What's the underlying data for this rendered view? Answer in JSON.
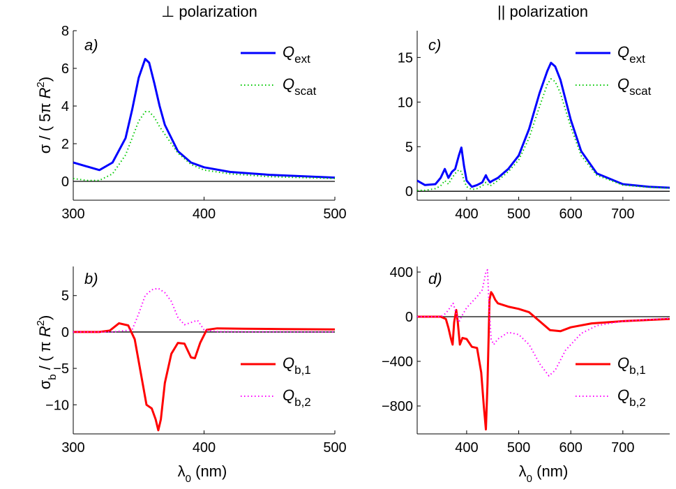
{
  "figure": {
    "column_titles": [
      "⊥ polarization",
      "|| polarization"
    ],
    "ylabel_top": "σ / ( 5π R²)",
    "ylabel_bottom": "σ_b / ( π R²)",
    "xlabel": "λ₀ (nm)"
  },
  "colors": {
    "blue": "#0000ff",
    "green": "#00c800",
    "red": "#ff0000",
    "magenta": "#ff00ff",
    "axis": "#000000"
  },
  "chart_data": [
    {
      "type": "line",
      "panel_label": "a)",
      "xlim": [
        300,
        500
      ],
      "ylim": [
        -1,
        8
      ],
      "xticks": [
        300,
        400,
        500
      ],
      "yticks": [
        0,
        2,
        4,
        6,
        8
      ],
      "zero_line": true,
      "legend": "top-right",
      "series": [
        {
          "name": "Q_ext",
          "name_main": "Q",
          "name_sub": "ext",
          "style": "solid",
          "color": "#0000ff",
          "x": [
            300,
            310,
            320,
            330,
            340,
            345,
            350,
            355,
            358,
            362,
            366,
            370,
            380,
            390,
            400,
            420,
            450,
            500
          ],
          "y": [
            1.0,
            0.8,
            0.6,
            1.0,
            2.3,
            3.8,
            5.5,
            6.5,
            6.3,
            5.2,
            4.0,
            3.0,
            1.6,
            1.0,
            0.75,
            0.5,
            0.35,
            0.2
          ]
        },
        {
          "name": "Q_scat",
          "name_main": "Q",
          "name_sub": "scat",
          "style": "dotted",
          "color": "#00c800",
          "x": [
            300,
            310,
            320,
            330,
            340,
            345,
            350,
            355,
            358,
            362,
            366,
            370,
            380,
            390,
            400,
            420,
            450,
            500
          ],
          "y": [
            0.15,
            0.05,
            0.05,
            0.4,
            1.4,
            2.3,
            3.2,
            3.7,
            3.7,
            3.4,
            2.9,
            2.5,
            1.5,
            0.9,
            0.6,
            0.4,
            0.25,
            0.15
          ]
        }
      ]
    },
    {
      "type": "line",
      "panel_label": "b)",
      "xlim": [
        300,
        500
      ],
      "ylim": [
        -14,
        9
      ],
      "xticks": [
        300,
        400,
        500
      ],
      "yticks": [
        -10,
        -5,
        0,
        5
      ],
      "zero_line": true,
      "legend": "bottom-right",
      "series": [
        {
          "name": "Q_b,1",
          "name_main": "Q",
          "name_sub": "b,1",
          "style": "solid",
          "color": "#ff0000",
          "x": [
            300,
            320,
            328,
            335,
            342,
            347,
            352,
            356,
            360,
            363,
            365,
            367,
            370,
            375,
            380,
            385,
            390,
            393,
            397,
            402,
            410,
            430,
            460,
            500
          ],
          "y": [
            0,
            0,
            0.2,
            1.2,
            0.9,
            -1,
            -6,
            -10,
            -10.5,
            -12,
            -13.5,
            -12,
            -7,
            -3,
            -1.5,
            -1.6,
            -3.5,
            -3.6,
            -1.5,
            0.3,
            0.5,
            0.45,
            0.4,
            0.35
          ],
          "name_pos": 0
        },
        {
          "name": "Q_b,2",
          "name_main": "Q",
          "name_sub": "b,2",
          "style": "dotted",
          "color": "#ff00ff",
          "x": [
            300,
            330,
            345,
            350,
            355,
            360,
            365,
            370,
            375,
            380,
            385,
            390,
            395,
            400,
            410,
            430,
            500
          ],
          "y": [
            0,
            0,
            0.3,
            2.5,
            5,
            5.8,
            6.0,
            5.4,
            4.2,
            2.0,
            1.0,
            1.3,
            1.6,
            0.3,
            0.05,
            0.02,
            0
          ]
        }
      ]
    },
    {
      "type": "line",
      "panel_label": "c)",
      "xlim": [
        305,
        790
      ],
      "ylim": [
        -1,
        18
      ],
      "xticks": [
        400,
        500,
        600,
        700
      ],
      "yticks": [
        0,
        5,
        10,
        15
      ],
      "zero_line": true,
      "legend": "top-right",
      "series": [
        {
          "name": "Q_ext",
          "name_main": "Q",
          "name_sub": "ext",
          "style": "solid",
          "color": "#0000ff",
          "x": [
            305,
            320,
            340,
            350,
            358,
            365,
            372,
            378,
            385,
            390,
            395,
            400,
            410,
            420,
            430,
            437,
            440,
            445,
            450,
            460,
            480,
            500,
            520,
            540,
            555,
            562,
            570,
            580,
            600,
            620,
            650,
            700,
            750,
            790
          ],
          "y": [
            1.2,
            0.7,
            0.8,
            1.5,
            2.5,
            1.5,
            2.2,
            2.5,
            4.0,
            4.9,
            2.8,
            1.2,
            0.5,
            0.7,
            1.0,
            1.8,
            1.4,
            1.0,
            1.2,
            1.5,
            2.5,
            4.0,
            7.0,
            11.0,
            13.5,
            14.4,
            14.0,
            12.5,
            8.0,
            4.5,
            2.0,
            0.8,
            0.5,
            0.4
          ]
        },
        {
          "name": "Q_scat",
          "name_main": "Q",
          "name_sub": "scat",
          "style": "dotted",
          "color": "#00c800",
          "x": [
            305,
            320,
            340,
            350,
            358,
            365,
            372,
            378,
            385,
            390,
            395,
            400,
            410,
            420,
            430,
            437,
            440,
            445,
            450,
            460,
            480,
            500,
            520,
            540,
            555,
            562,
            570,
            580,
            600,
            620,
            650,
            700,
            750,
            790
          ],
          "y": [
            0.1,
            0.1,
            0.3,
            0.6,
            1.2,
            0.8,
            1.5,
            2.0,
            2.4,
            2.2,
            1.2,
            0.5,
            0.2,
            0.3,
            0.6,
            1.0,
            0.8,
            0.6,
            0.8,
            1.2,
            2.2,
            3.5,
            6.0,
            9.5,
            12.0,
            12.6,
            12.3,
            11.0,
            7.2,
            4.0,
            1.8,
            0.7,
            0.45,
            0.35
          ]
        }
      ]
    },
    {
      "type": "line",
      "panel_label": "d)",
      "xlim": [
        305,
        790
      ],
      "ylim": [
        -1050,
        450
      ],
      "xticks": [
        400,
        500,
        600,
        700
      ],
      "yticks": [
        -800,
        -400,
        0,
        400
      ],
      "zero_line": true,
      "legend": "bottom-right",
      "series": [
        {
          "name": "Q_b,1",
          "name_main": "Q",
          "name_sub": "b,1",
          "style": "solid",
          "color": "#ff0000",
          "x": [
            305,
            350,
            360,
            365,
            370,
            373,
            376,
            380,
            383,
            387,
            392,
            400,
            410,
            420,
            428,
            433,
            437,
            440,
            444,
            447,
            450,
            455,
            460,
            480,
            500,
            520,
            540,
            560,
            580,
            600,
            640,
            700,
            790
          ],
          "y": [
            0,
            0,
            -20,
            -100,
            -200,
            -250,
            -50,
            60,
            -50,
            -250,
            -190,
            -200,
            -270,
            -280,
            -500,
            -800,
            -1010,
            -600,
            150,
            220,
            200,
            150,
            120,
            90,
            70,
            40,
            -40,
            -120,
            -130,
            -95,
            -60,
            -40,
            -20
          ]
        },
        {
          "name": "Q_b,2",
          "name_main": "Q",
          "name_sub": "b,2",
          "style": "dotted",
          "color": "#ff00ff",
          "x": [
            305,
            350,
            360,
            368,
            374,
            380,
            385,
            390,
            400,
            410,
            420,
            430,
            437,
            440,
            443,
            447,
            452,
            460,
            480,
            500,
            520,
            540,
            558,
            570,
            590,
            620,
            650,
            700,
            790
          ],
          "y": [
            0,
            0,
            30,
            80,
            120,
            30,
            -50,
            0,
            80,
            130,
            180,
            240,
            400,
            420,
            100,
            -200,
            -250,
            -200,
            -140,
            -160,
            -250,
            -420,
            -530,
            -480,
            -300,
            -150,
            -80,
            -40,
            -15
          ]
        }
      ]
    }
  ]
}
